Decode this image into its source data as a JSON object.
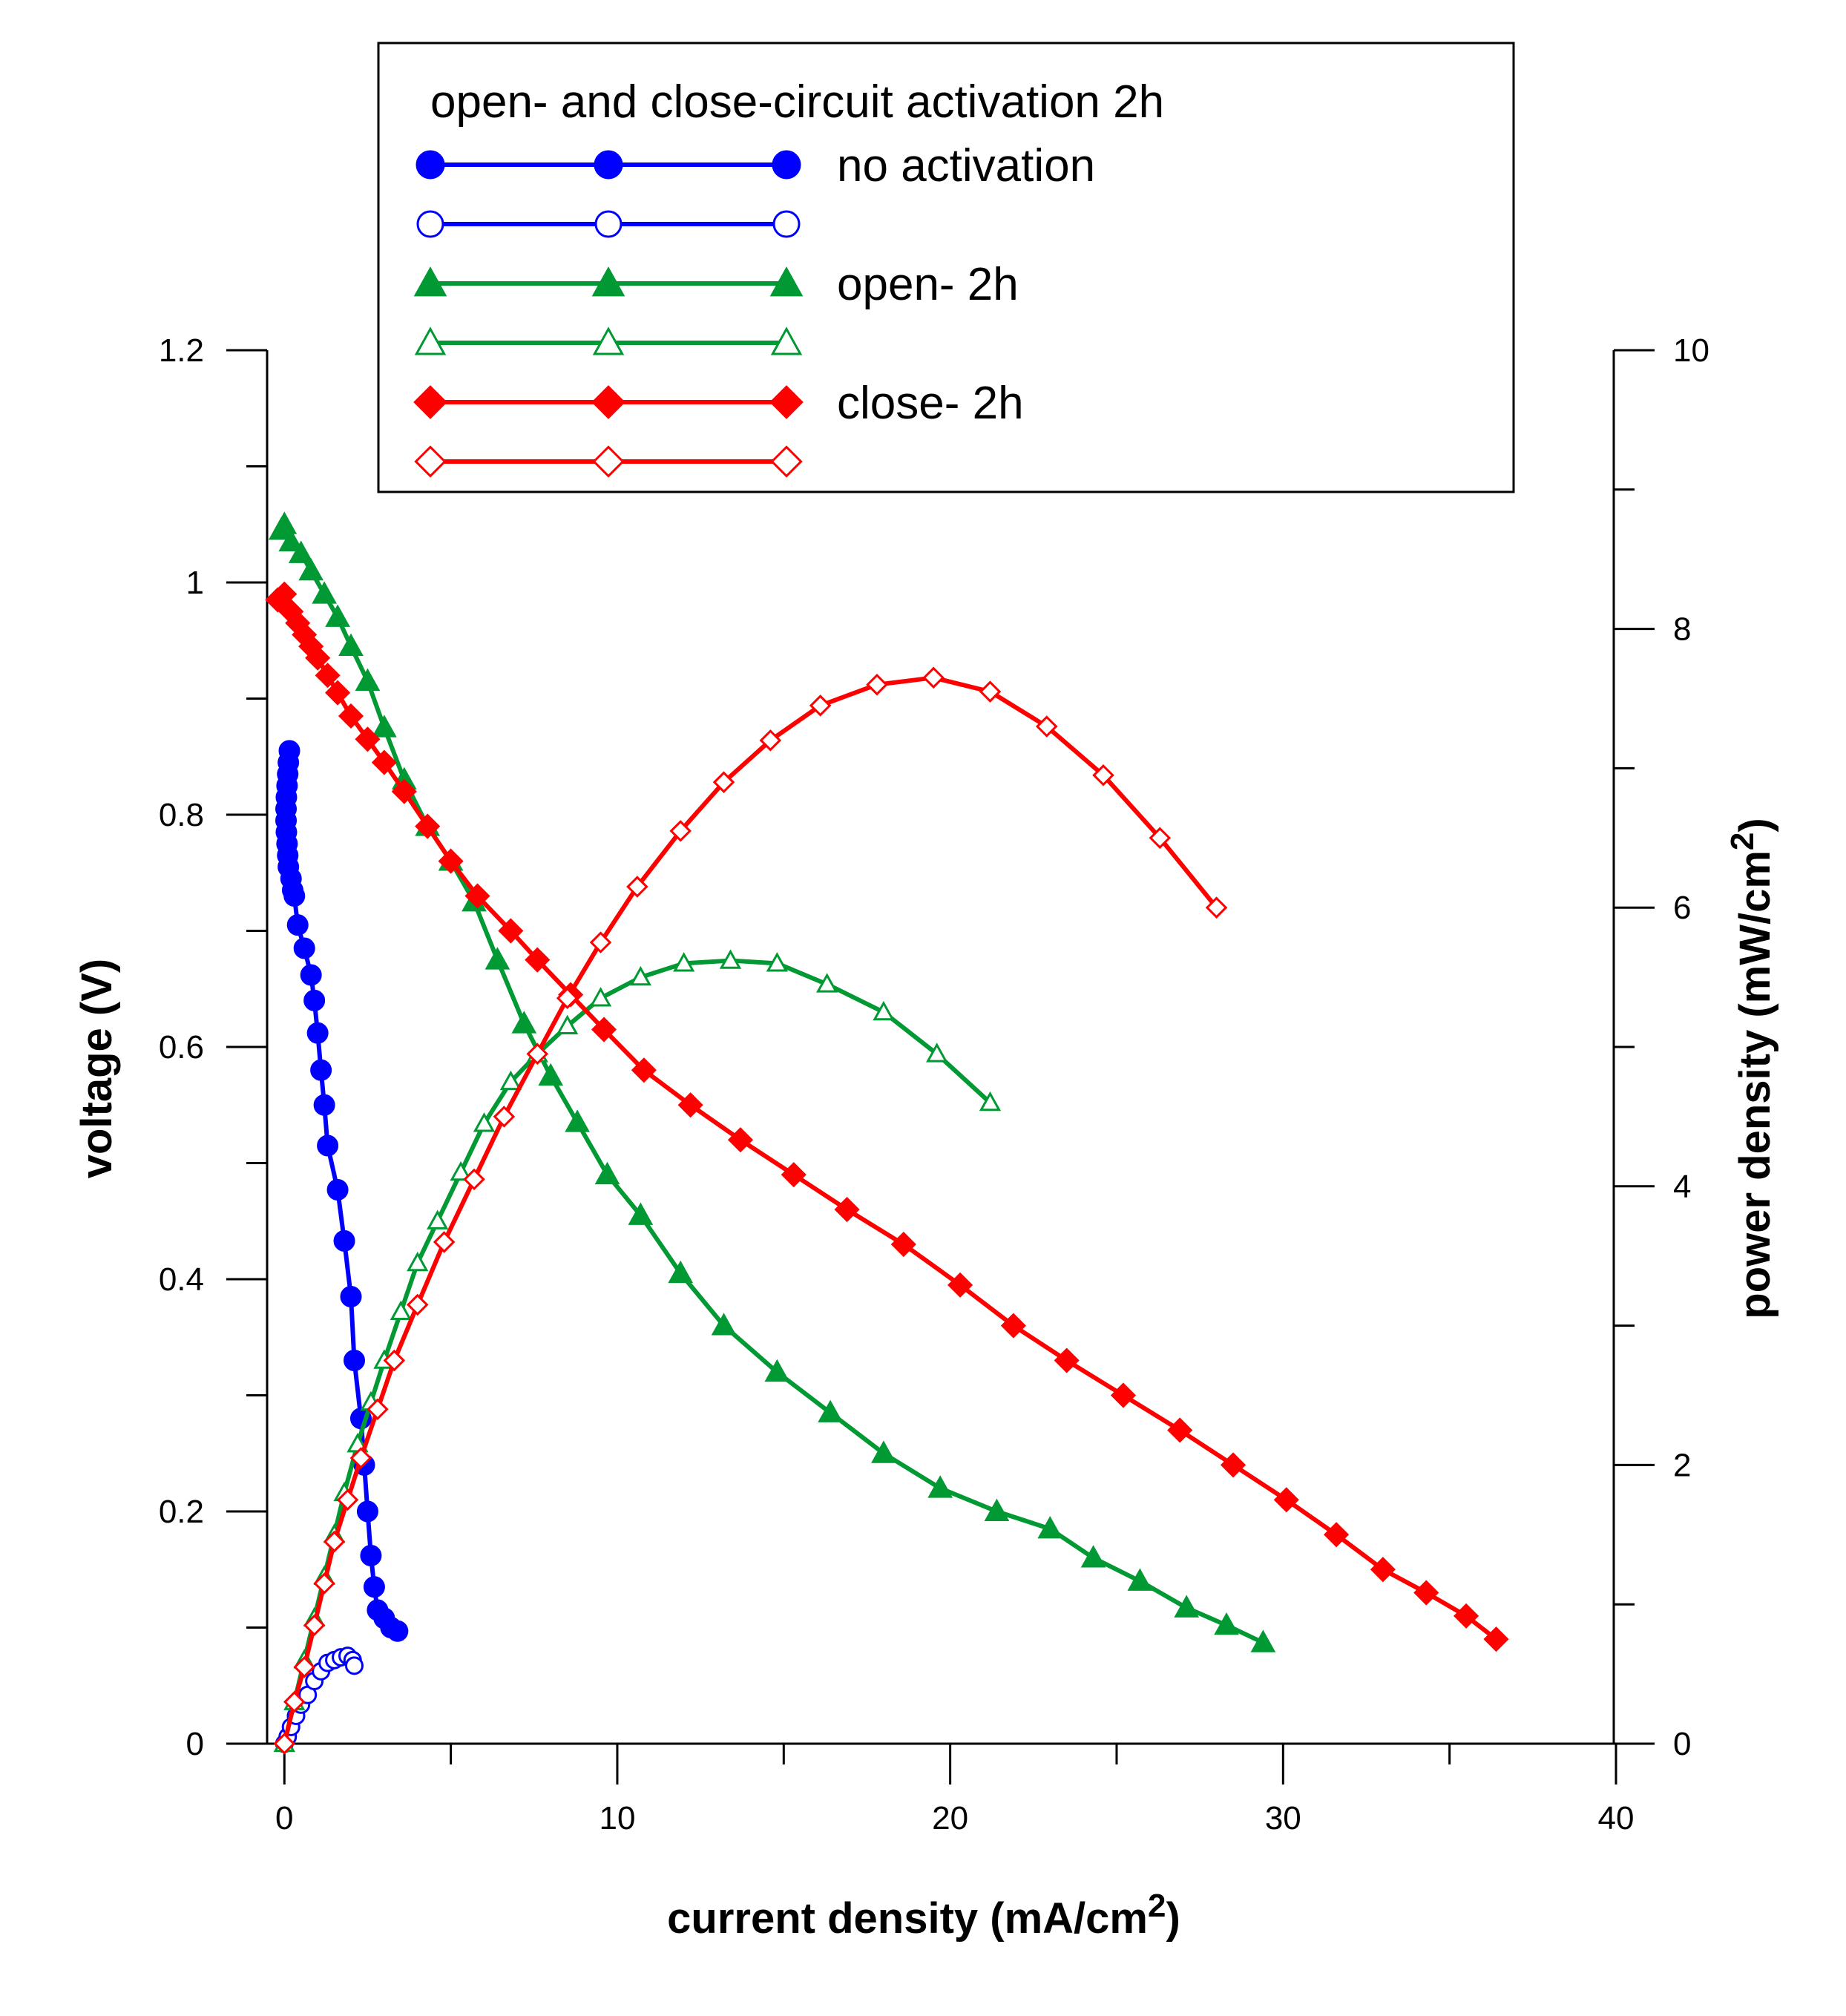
{
  "chart_data": {
    "type": "line",
    "title": "",
    "xlabel": "current density (mA/cm",
    "xlabel_sup": "2",
    "xlabel_close": ")",
    "ylabel": "voltage (V)",
    "y2label": "power density (mW/cm",
    "y2label_sup": "2",
    "y2label_close": ")",
    "xlim": [
      -1.7,
      40
    ],
    "ylim": [
      0,
      1.2
    ],
    "y2lim": [
      0,
      10
    ],
    "x_ticks": [
      0,
      10,
      20,
      30,
      40
    ],
    "x_tick_labels": [
      "0",
      "10",
      "20",
      "30",
      "40"
    ],
    "y_ticks": [
      0,
      0.2,
      0.4,
      0.6,
      0.8,
      1,
      1.2
    ],
    "y_tick_labels": [
      "0",
      "0.2",
      "0.4",
      "0.6",
      "0.8",
      "1",
      "1.2"
    ],
    "y2_ticks": [
      0,
      2,
      4,
      6,
      8,
      10
    ],
    "y2_tick_labels": [
      "0",
      "2",
      "4",
      "6",
      "8",
      "10"
    ],
    "grid": false,
    "legend": {
      "title": "open- and close-circuit activation 2h",
      "position": "top",
      "entries": [
        {
          "series": "no_activation_voltage",
          "label": "no activation"
        },
        {
          "series": "no_activation_power",
          "label": ""
        },
        {
          "series": "open_voltage",
          "label": "open- 2h"
        },
        {
          "series": "open_power",
          "label": ""
        },
        {
          "series": "close_voltage",
          "label": "close- 2h"
        },
        {
          "series": "close_power",
          "label": ""
        }
      ]
    },
    "series": [
      {
        "id": "no_activation_voltage",
        "name": "no activation",
        "axis": "left",
        "color": "#0000ff",
        "marker": "circle",
        "filled": true,
        "x": [
          0.15,
          0.12,
          0.1,
          0.08,
          0.06,
          0.05,
          0.05,
          0.06,
          0.08,
          0.1,
          0.12,
          0.2,
          0.25,
          0.3,
          0.4,
          0.6,
          0.8,
          0.9,
          1.0,
          1.1,
          1.2,
          1.3,
          1.6,
          1.8,
          2.0,
          2.1,
          2.3,
          2.4,
          2.5,
          2.6,
          2.7,
          2.8,
          3.0,
          3.2,
          3.4
        ],
        "y": [
          0.855,
          0.845,
          0.835,
          0.825,
          0.815,
          0.805,
          0.795,
          0.785,
          0.775,
          0.765,
          0.755,
          0.745,
          0.735,
          0.73,
          0.705,
          0.685,
          0.662,
          0.64,
          0.612,
          0.58,
          0.55,
          0.515,
          0.477,
          0.433,
          0.385,
          0.33,
          0.28,
          0.24,
          0.2,
          0.162,
          0.135,
          0.115,
          0.108,
          0.1,
          0.097
        ]
      },
      {
        "id": "no_activation_power",
        "name": "no activation (power)",
        "axis": "right",
        "color": "#0000ff",
        "marker": "circle",
        "filled": false,
        "x": [
          0,
          0.1,
          0.2,
          0.35,
          0.5,
          0.7,
          0.9,
          1.1,
          1.3,
          1.5,
          1.7,
          1.9,
          2.05,
          2.1
        ],
        "y2": [
          0,
          0.05,
          0.12,
          0.2,
          0.28,
          0.35,
          0.45,
          0.52,
          0.58,
          0.6,
          0.62,
          0.63,
          0.6,
          0.56
        ]
      },
      {
        "id": "open_voltage",
        "name": "open- 2h",
        "axis": "left",
        "color": "#009933",
        "marker": "triangle",
        "filled": true,
        "x": [
          -0.1,
          0,
          0.2,
          0.5,
          0.8,
          1.2,
          1.6,
          2.0,
          2.5,
          3.0,
          3.6,
          4.3,
          5.0,
          5.7,
          6.4,
          7.2,
          8.0,
          8.8,
          9.7,
          10.7,
          11.9,
          13.2,
          14.8,
          16.4,
          18.0,
          19.7,
          21.4,
          23.0,
          24.3,
          25.7,
          27.1,
          28.3,
          29.4
        ],
        "y": [
          1.045,
          1.05,
          1.035,
          1.025,
          1.01,
          0.99,
          0.97,
          0.945,
          0.915,
          0.875,
          0.83,
          0.79,
          0.76,
          0.725,
          0.675,
          0.62,
          0.575,
          0.535,
          0.49,
          0.455,
          0.405,
          0.36,
          0.32,
          0.285,
          0.25,
          0.22,
          0.2,
          0.185,
          0.16,
          0.14,
          0.117,
          0.102,
          0.087
        ]
      },
      {
        "id": "open_power",
        "name": "open- 2h (power)",
        "axis": "right",
        "color": "#009933",
        "marker": "triangle",
        "filled": false,
        "x": [
          0,
          0.3,
          0.6,
          0.9,
          1.2,
          1.5,
          1.8,
          2.2,
          2.6,
          3.0,
          3.5,
          4.0,
          4.6,
          5.3,
          6.0,
          6.8,
          7.6,
          8.5,
          9.5,
          10.7,
          12.0,
          13.4,
          14.8,
          16.3,
          18.0,
          19.6,
          21.2
        ],
        "y2": [
          0,
          0.3,
          0.6,
          0.9,
          1.2,
          1.5,
          1.8,
          2.15,
          2.45,
          2.75,
          3.1,
          3.45,
          3.75,
          4.1,
          4.45,
          4.75,
          4.95,
          5.15,
          5.35,
          5.5,
          5.6,
          5.62,
          5.6,
          5.45,
          5.25,
          4.95,
          4.6
        ]
      },
      {
        "id": "close_voltage",
        "name": "close- 2h",
        "axis": "left",
        "color": "#ff0000",
        "marker": "diamond",
        "filled": true,
        "x": [
          -0.2,
          0,
          0.2,
          0.4,
          0.6,
          0.8,
          1.0,
          1.3,
          1.6,
          2.0,
          2.5,
          3.0,
          3.6,
          4.3,
          5.0,
          5.8,
          6.8,
          7.6,
          8.6,
          9.6,
          10.8,
          12.2,
          13.7,
          15.3,
          16.9,
          18.6,
          20.3,
          21.9,
          23.5,
          25.2,
          26.9,
          28.5,
          30.1,
          31.6,
          33.0,
          34.3,
          35.5,
          36.4
        ],
        "y": [
          0.985,
          0.99,
          0.975,
          0.965,
          0.955,
          0.945,
          0.935,
          0.92,
          0.905,
          0.885,
          0.865,
          0.845,
          0.82,
          0.79,
          0.76,
          0.73,
          0.7,
          0.675,
          0.645,
          0.615,
          0.58,
          0.55,
          0.52,
          0.49,
          0.46,
          0.43,
          0.395,
          0.36,
          0.33,
          0.3,
          0.27,
          0.24,
          0.21,
          0.18,
          0.15,
          0.13,
          0.11,
          0.09
        ]
      },
      {
        "id": "close_power",
        "name": "close- 2h (power)",
        "axis": "right",
        "color": "#ff0000",
        "marker": "diamond",
        "filled": false,
        "x": [
          0,
          0.3,
          0.6,
          0.9,
          1.2,
          1.5,
          1.9,
          2.3,
          2.8,
          3.3,
          4.0,
          4.8,
          5.7,
          6.6,
          7.6,
          8.5,
          9.5,
          10.6,
          11.9,
          13.2,
          14.6,
          16.1,
          17.8,
          19.5,
          21.2,
          22.9,
          24.6,
          26.3,
          28.0
        ],
        "y2": [
          0,
          0.3,
          0.55,
          0.85,
          1.15,
          1.45,
          1.75,
          2.05,
          2.4,
          2.75,
          3.15,
          3.6,
          4.05,
          4.5,
          4.95,
          5.35,
          5.75,
          6.15,
          6.55,
          6.9,
          7.2,
          7.45,
          7.6,
          7.65,
          7.55,
          7.3,
          6.95,
          6.5,
          6.0
        ]
      }
    ]
  }
}
